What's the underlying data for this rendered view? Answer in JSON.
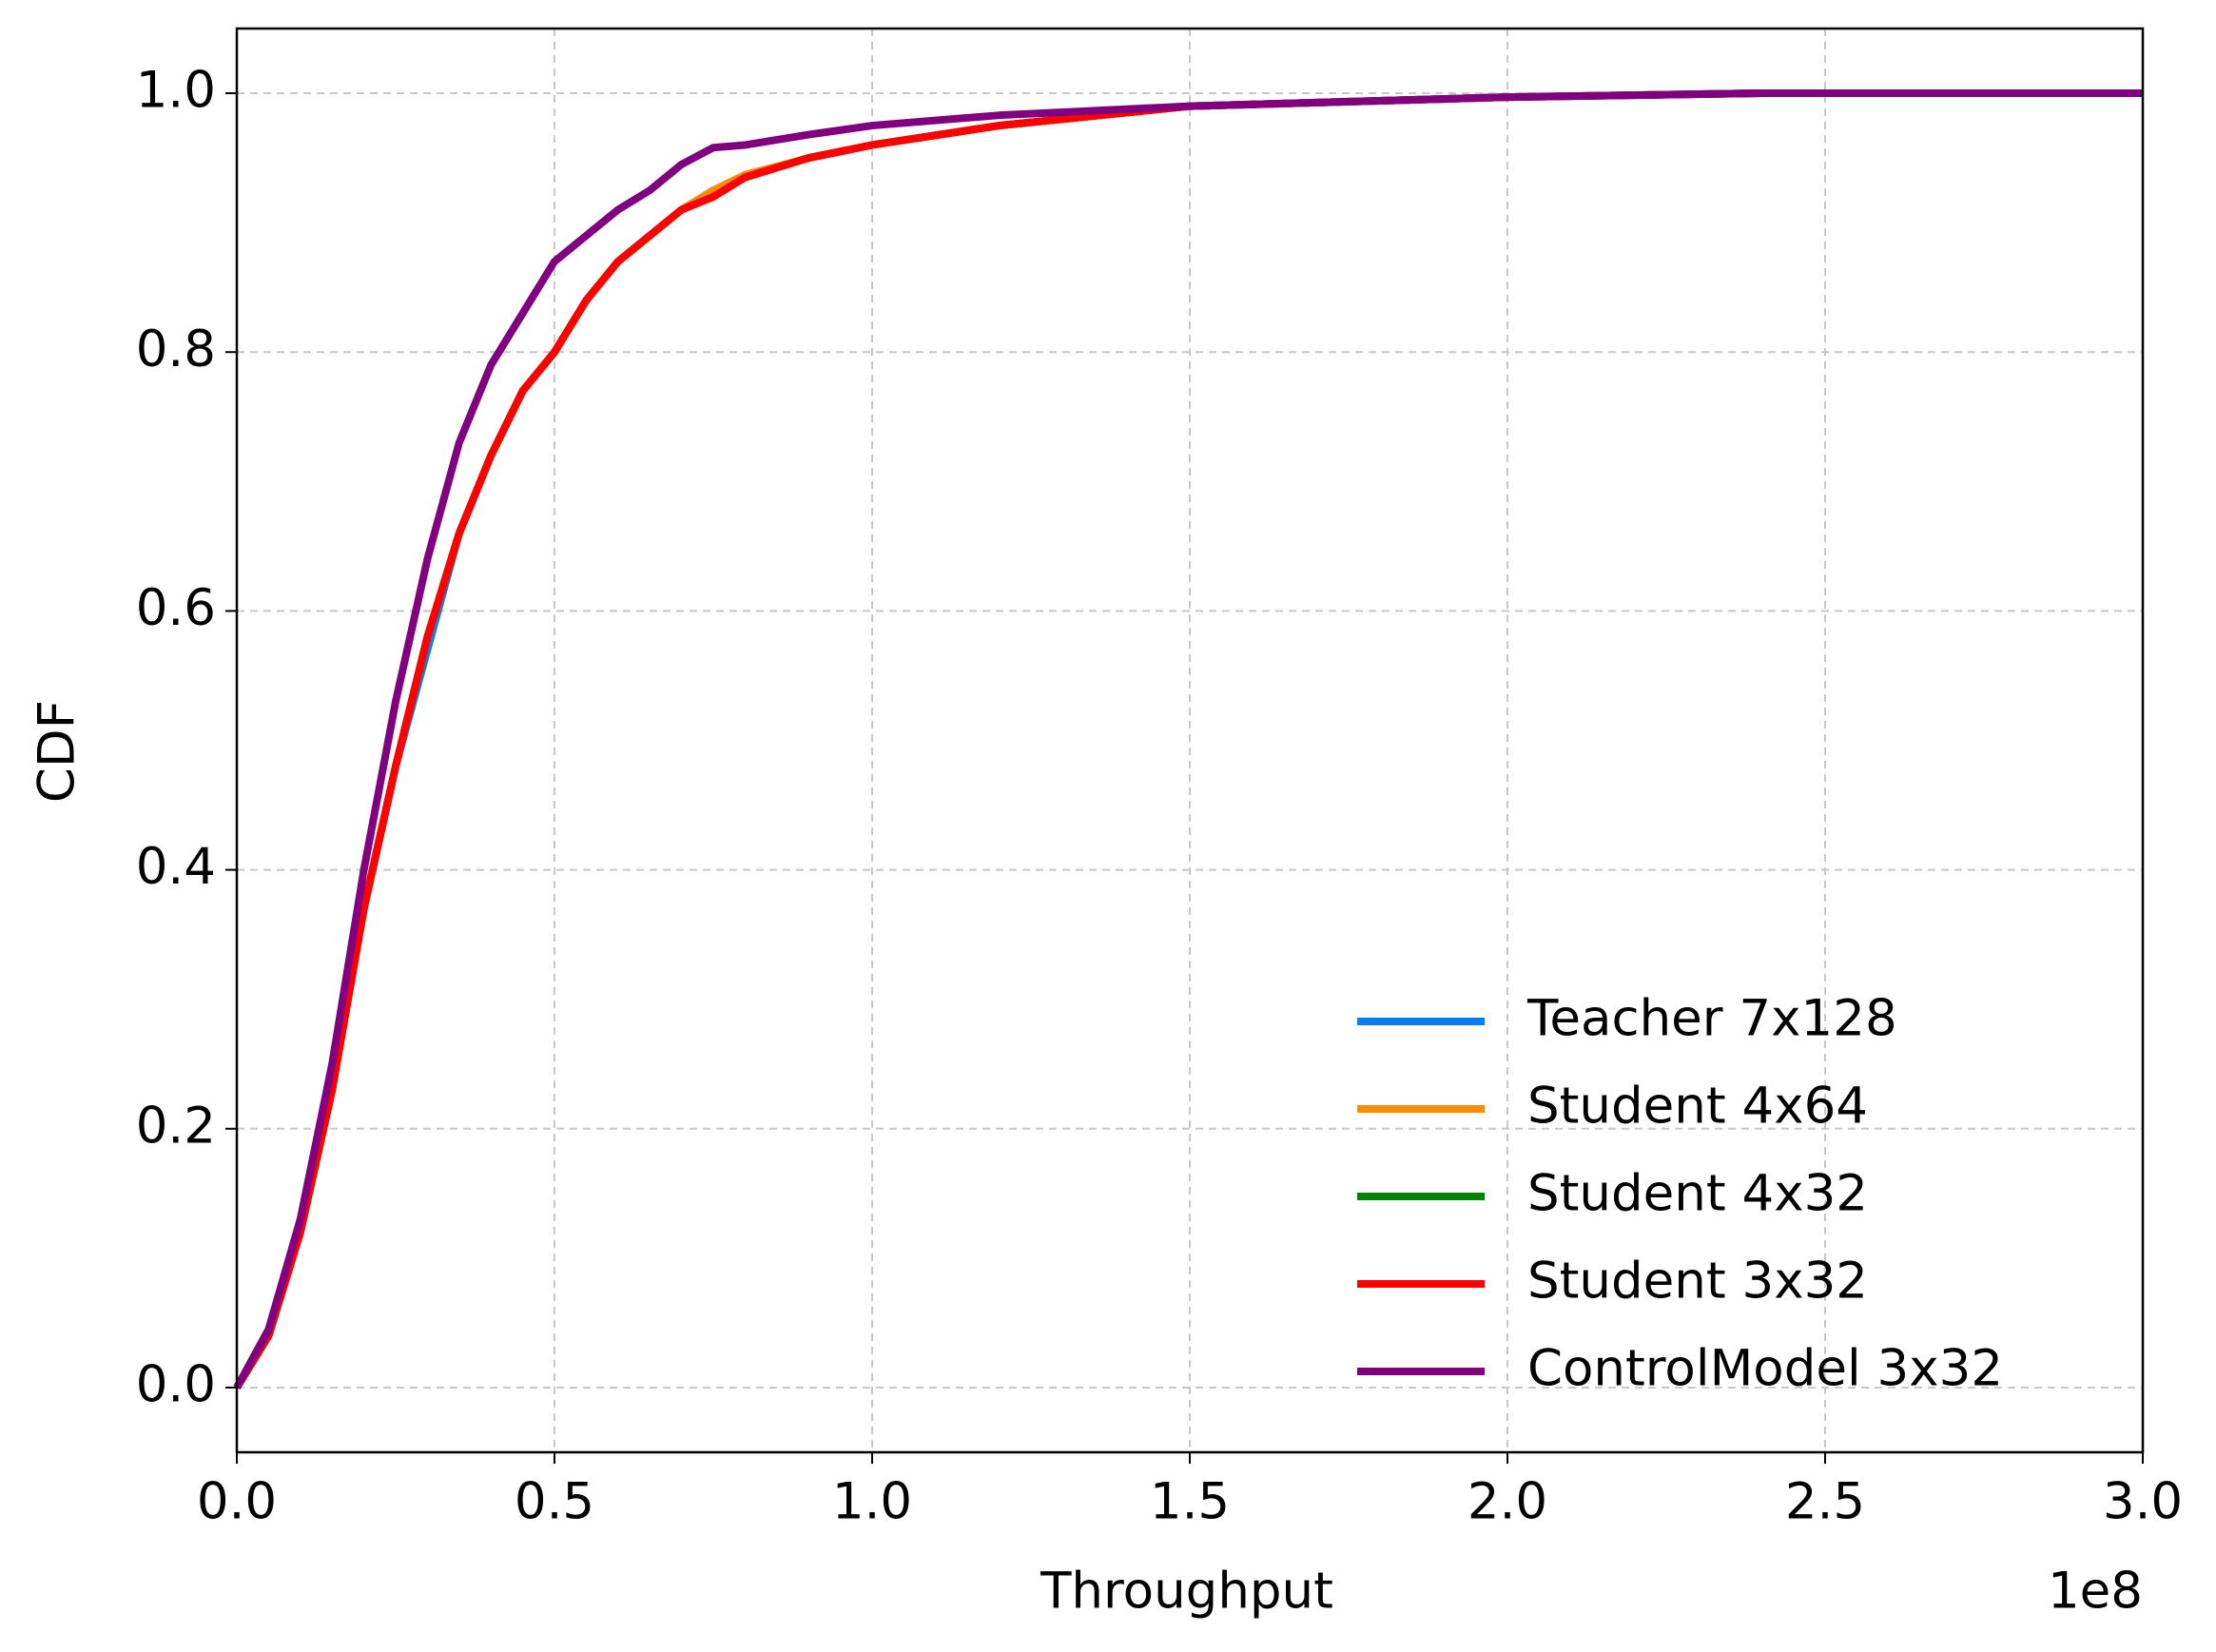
{
  "chart_data": {
    "type": "line",
    "xlabel": "Throughput",
    "ylabel": "CDF",
    "x_offset_label": "1e8",
    "x": [
      0,
      0.05,
      0.1,
      0.15,
      0.2,
      0.25,
      0.3,
      0.35,
      0.4,
      0.45,
      0.5,
      0.55,
      0.6,
      0.65,
      0.7,
      0.75,
      0.8,
      0.9,
      1.0,
      1.2,
      1.5,
      2.0,
      2.4,
      3.0
    ],
    "series": [
      {
        "name": "Teacher 7x128",
        "color": "#0a7cf5",
        "values": [
          0,
          0.04,
          0.12,
          0.23,
          0.37,
          0.48,
          0.57,
          0.66,
          0.72,
          0.77,
          0.8,
          0.84,
          0.87,
          0.89,
          0.91,
          0.925,
          0.935,
          0.95,
          0.96,
          0.975,
          0.99,
          0.997,
          1.0,
          1.0
        ]
      },
      {
        "name": "Student 4x64",
        "color": "#ff8c00",
        "values": [
          0,
          0.04,
          0.12,
          0.23,
          0.37,
          0.48,
          0.58,
          0.66,
          0.72,
          0.77,
          0.8,
          0.84,
          0.87,
          0.89,
          0.91,
          0.925,
          0.937,
          0.95,
          0.96,
          0.975,
          0.99,
          0.997,
          1.0,
          1.0
        ]
      },
      {
        "name": "Student 4x32",
        "color": "#008000",
        "values": [
          0,
          0.04,
          0.12,
          0.23,
          0.37,
          0.48,
          0.58,
          0.66,
          0.72,
          0.77,
          0.8,
          0.84,
          0.87,
          0.89,
          0.91,
          0.92,
          0.935,
          0.95,
          0.96,
          0.975,
          0.99,
          0.997,
          1.0,
          1.0
        ]
      },
      {
        "name": "Student 3x32",
        "color": "#ff0000",
        "values": [
          0,
          0.04,
          0.12,
          0.23,
          0.37,
          0.48,
          0.58,
          0.66,
          0.72,
          0.77,
          0.8,
          0.84,
          0.87,
          0.89,
          0.91,
          0.92,
          0.935,
          0.95,
          0.96,
          0.975,
          0.99,
          0.997,
          1.0,
          1.0
        ]
      },
      {
        "name": "ControlModel 3x32",
        "color": "#800080",
        "values": [
          0,
          0.045,
          0.13,
          0.25,
          0.4,
          0.53,
          0.64,
          0.73,
          0.79,
          0.83,
          0.87,
          0.89,
          0.91,
          0.925,
          0.945,
          0.958,
          0.96,
          0.968,
          0.975,
          0.983,
          0.99,
          0.997,
          1.0,
          1.0
        ]
      }
    ],
    "xlim": [
      0,
      3
    ],
    "ylim": [
      -0.05,
      1.05
    ],
    "xticks": [
      {
        "value": 0,
        "label": "0.0"
      },
      {
        "value": 0.5,
        "label": "0.5"
      },
      {
        "value": 1,
        "label": "1.0"
      },
      {
        "value": 1.5,
        "label": "1.5"
      },
      {
        "value": 2,
        "label": "2.0"
      },
      {
        "value": 2.5,
        "label": "2.5"
      },
      {
        "value": 3,
        "label": "3.0"
      }
    ],
    "yticks": [
      {
        "value": 0,
        "label": "0.0"
      },
      {
        "value": 0.2,
        "label": "0.2"
      },
      {
        "value": 0.4,
        "label": "0.4"
      },
      {
        "value": 0.6,
        "label": "0.6"
      },
      {
        "value": 0.8,
        "label": "0.8"
      },
      {
        "value": 1,
        "label": "1.0"
      }
    ],
    "grid": true,
    "legend": "lower right"
  }
}
